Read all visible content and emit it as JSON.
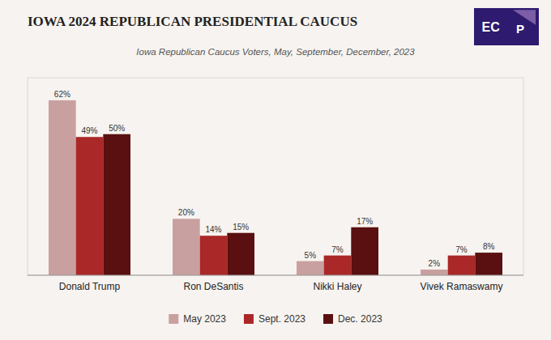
{
  "chart_data": {
    "type": "bar",
    "title": "IOWA 2024 REPUBLICAN PRESIDENTIAL CAUCUS",
    "subtitle": "Iowa Republican Caucus Voters, May, September, December, 2023",
    "categories": [
      "Donald Trump",
      "Ron DeSantis",
      "Nikki Haley",
      "Vivek Ramaswamy"
    ],
    "series": [
      {
        "name": "May 2023",
        "color": "#c9a0a0",
        "values": [
          62,
          20,
          5,
          2
        ],
        "value_labels": [
          "62%",
          "20%",
          "5%",
          "2%"
        ]
      },
      {
        "name": "Sept. 2023",
        "color": "#aa2828",
        "values": [
          49,
          14,
          7,
          7
        ],
        "value_labels": [
          "49%",
          "14%",
          "7%",
          "7%"
        ]
      },
      {
        "name": "Dec. 2023",
        "color": "#5a1010",
        "values": [
          50,
          15,
          17,
          8
        ],
        "value_labels": [
          "50%",
          "15%",
          "17%",
          "8%"
        ]
      }
    ],
    "ylim": [
      0,
      70
    ],
    "grid": false,
    "legend": "bottom",
    "data_labels": true,
    "tick_labels": "x",
    "annotations": [
      "EC",
      "P"
    ]
  }
}
